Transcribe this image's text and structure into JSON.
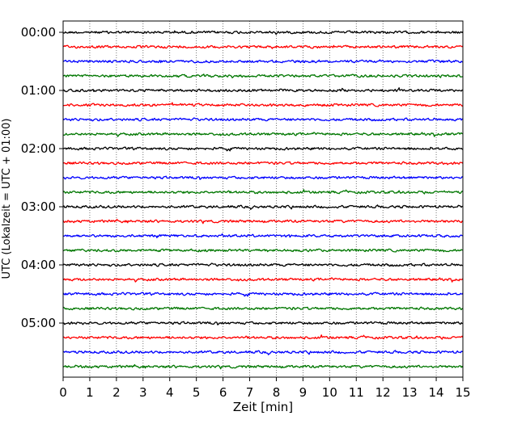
{
  "chart_data": {
    "type": "line",
    "title": "",
    "xlabel": "Zeit  [min]",
    "ylabel": "UTC (Lokalzeit = UTC + 01:00)",
    "xlim": [
      0,
      15
    ],
    "x_ticks": [
      "0",
      "1",
      "2",
      "3",
      "4",
      "5",
      "6",
      "7",
      "8",
      "9",
      "10",
      "11",
      "12",
      "13",
      "14",
      "15"
    ],
    "y_ticks": [
      "00:00",
      "01:00",
      "02:00",
      "03:00",
      "04:00",
      "05:00"
    ],
    "trace_interval_minutes": 15,
    "trace_count": 24,
    "trace_color_cycle": [
      "#000000",
      "#ff0000",
      "#0000ff",
      "#007700"
    ],
    "grid": "vertical dotted lines at each minute",
    "legend": "none"
  }
}
